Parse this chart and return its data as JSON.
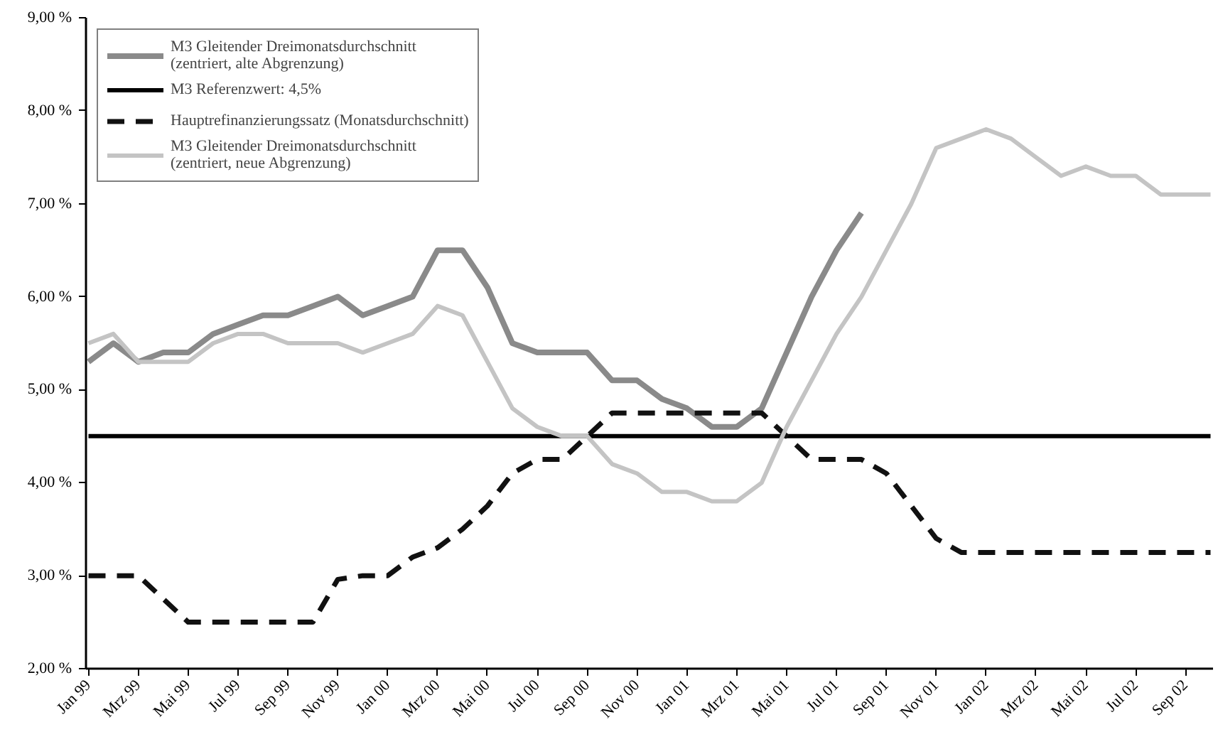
{
  "chart_data": {
    "type": "line",
    "categories": [
      "Jan 99",
      null,
      "Mrz 99",
      null,
      "Mai 99",
      null,
      "Jul 99",
      null,
      "Sep 99",
      null,
      "Nov 99",
      null,
      "Jan 00",
      null,
      "Mrz 00",
      null,
      "Mai 00",
      null,
      "Jul 00",
      null,
      "Sep 00",
      null,
      "Nov 00",
      null,
      "Jan 01",
      null,
      "Mrz 01",
      null,
      "Mai 01",
      null,
      "Jul 01",
      null,
      "Sep 01",
      null,
      "Nov 01",
      null,
      "Jan 02",
      null,
      "Mrz 02",
      null,
      "Mai 02",
      null,
      "Jul 02",
      null,
      "Sep 02",
      null
    ],
    "series": [
      {
        "name": "M3 Gleitender Dreimonatsdurchschnitt\n(zentriert, alte Abgrenzung)",
        "color": "#8a8a8a",
        "line_style": "solid",
        "values": [
          5.3,
          5.5,
          5.3,
          5.4,
          5.4,
          5.6,
          5.7,
          5.8,
          5.8,
          5.9,
          6.0,
          5.8,
          5.9,
          6.0,
          6.5,
          6.5,
          6.1,
          5.5,
          5.4,
          5.4,
          5.4,
          5.1,
          5.1,
          4.9,
          4.8,
          4.6,
          4.6,
          4.8,
          5.4,
          6.0,
          6.5,
          6.9,
          null,
          null,
          null,
          null,
          null,
          null,
          null,
          null,
          null,
          null,
          null,
          null,
          null,
          null
        ]
      },
      {
        "name": "M3 Referenzwert: 4,5%",
        "color": "#000000",
        "line_style": "solid",
        "values": [
          4.5,
          4.5,
          4.5,
          4.5,
          4.5,
          4.5,
          4.5,
          4.5,
          4.5,
          4.5,
          4.5,
          4.5,
          4.5,
          4.5,
          4.5,
          4.5,
          4.5,
          4.5,
          4.5,
          4.5,
          4.5,
          4.5,
          4.5,
          4.5,
          4.5,
          4.5,
          4.5,
          4.5,
          4.5,
          4.5,
          4.5,
          4.5,
          4.5,
          4.5,
          4.5,
          4.5,
          4.5,
          4.5,
          4.5,
          4.5,
          4.5,
          4.5,
          4.5,
          4.5,
          4.5,
          4.5
        ]
      },
      {
        "name": "Hauptrefinanzierungssatz (Monatsdurchschnitt)",
        "color": "#111111",
        "line_style": "dashed",
        "values": [
          3.0,
          3.0,
          3.0,
          2.75,
          2.5,
          2.5,
          2.5,
          2.5,
          2.5,
          2.5,
          2.96,
          3.0,
          3.0,
          3.2,
          3.3,
          3.5,
          3.75,
          4.1,
          4.25,
          4.25,
          4.5,
          4.75,
          4.75,
          4.75,
          4.75,
          4.75,
          4.75,
          4.75,
          4.5,
          4.25,
          4.25,
          4.25,
          4.1,
          3.75,
          3.4,
          3.25,
          3.25,
          3.25,
          3.25,
          3.25,
          3.25,
          3.25,
          3.25,
          3.25,
          3.25,
          3.25
        ]
      },
      {
        "name": "M3 Gleitender Dreimonatsdurchschnitt\n(zentriert, neue Abgrenzung)",
        "color": "#c4c4c4",
        "line_style": "solid",
        "values": [
          5.5,
          5.6,
          5.3,
          5.3,
          5.3,
          5.5,
          5.6,
          5.6,
          5.5,
          5.5,
          5.5,
          5.4,
          5.5,
          5.6,
          5.9,
          5.8,
          5.3,
          4.8,
          4.6,
          4.5,
          4.5,
          4.2,
          4.1,
          3.9,
          3.9,
          3.8,
          3.8,
          4.0,
          4.6,
          5.1,
          5.6,
          6.0,
          6.5,
          7.0,
          7.6,
          7.7,
          7.8,
          7.7,
          7.5,
          7.3,
          7.4,
          7.3,
          7.3,
          7.1,
          7.1,
          7.1
        ]
      }
    ],
    "ylim": [
      2,
      9
    ],
    "yticks": [
      {
        "value": 2,
        "label": "2,00 %"
      },
      {
        "value": 3,
        "label": "3,00 %"
      },
      {
        "value": 4,
        "label": "4,00 %"
      },
      {
        "value": 5,
        "label": "5,00 %"
      },
      {
        "value": 6,
        "label": "6,00 %"
      },
      {
        "value": 7,
        "label": "7,00 %"
      },
      {
        "value": 8,
        "label": "8,00 %"
      },
      {
        "value": 9,
        "label": "9,00 %"
      }
    ],
    "grid": false,
    "legend": "top left"
  }
}
